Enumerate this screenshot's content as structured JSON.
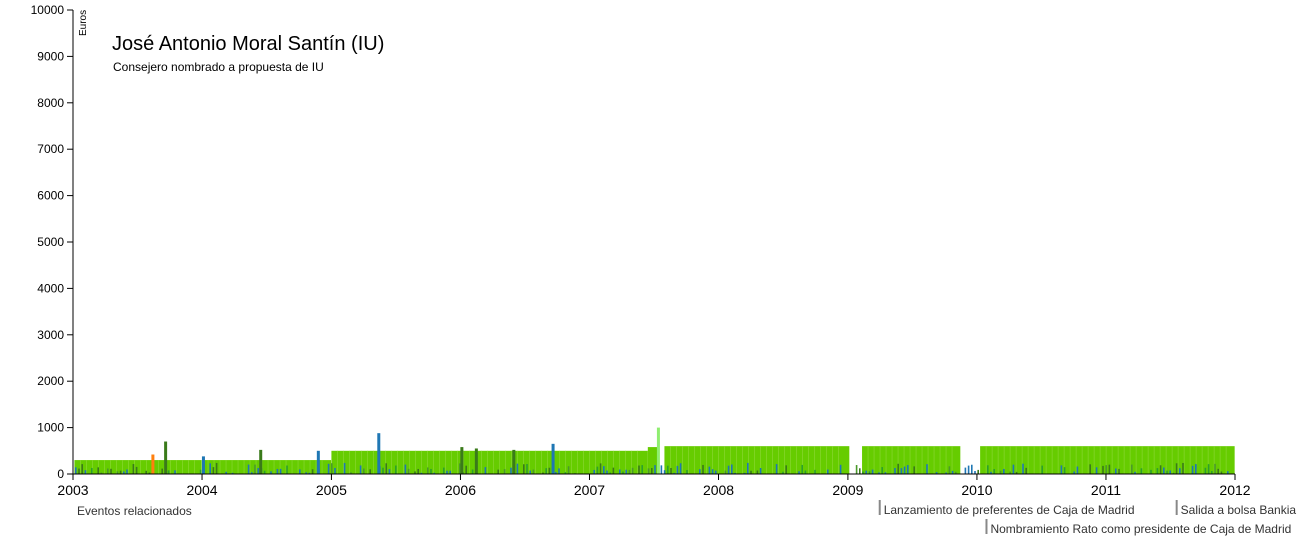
{
  "chart_data": {
    "type": "bar",
    "title": "José Antonio Moral Santín (IU)",
    "subtitle": "Consejero nombrado a propuesta de IU",
    "ylabel": "Euros",
    "ylim": [
      0,
      10000
    ],
    "y_ticks": [
      0,
      1000,
      2000,
      3000,
      4000,
      5000,
      6000,
      7000,
      8000,
      9000,
      10000
    ],
    "x_domain": [
      "2003-01-01",
      "2012-01-01"
    ],
    "x_ticks": [
      "2003",
      "2004",
      "2005",
      "2006",
      "2007",
      "2008",
      "2009",
      "2010",
      "2011",
      "2012"
    ],
    "series": [
      {
        "color": "#66cc00",
        "segments": [
          {
            "start": "2003-01-05",
            "end": "2003-12-31",
            "value": 300
          },
          {
            "start": "2004-01-01",
            "end": "2004-12-31",
            "value": 300
          },
          {
            "start": "2005-01-01",
            "end": "2007-06-15",
            "value": 500
          },
          {
            "start": "2007-06-15",
            "end": "2007-07-15",
            "value": 580
          },
          {
            "start": "2007-08-01",
            "end": "2009-01-05",
            "value": 600
          },
          {
            "start": "2009-02-10",
            "end": "2009-11-15",
            "value": 600
          },
          {
            "start": "2010-01-10",
            "end": "2011-12-31",
            "value": 600
          }
        ]
      }
    ],
    "spikes": [
      {
        "date": "2003-09-20",
        "value": 700,
        "color": "#3a7a1a"
      },
      {
        "date": "2004-01-05",
        "value": 380,
        "color": "#1f77b4"
      },
      {
        "date": "2004-06-15",
        "value": 520,
        "color": "#3a7a1a"
      },
      {
        "date": "2004-11-25",
        "value": 500,
        "color": "#1f77b4"
      },
      {
        "date": "2005-05-15",
        "value": 880,
        "color": "#1f77b4"
      },
      {
        "date": "2006-01-05",
        "value": 580,
        "color": "#3a7a1a"
      },
      {
        "date": "2006-02-15",
        "value": 550,
        "color": "#3a7a1a"
      },
      {
        "date": "2006-06-01",
        "value": 520,
        "color": "#3a7a1a"
      },
      {
        "date": "2006-09-20",
        "value": 650,
        "color": "#1f77b4"
      },
      {
        "date": "2007-07-15",
        "value": 1000,
        "color": "#8fee70"
      },
      {
        "date": "2003-08-15",
        "value": 420,
        "color": "#ff7f0e"
      }
    ],
    "events_label": "Eventos relacionados",
    "events": [
      {
        "date": "2009-04-01",
        "label": "Lanzamiento de preferentes de Caja de Madrid",
        "row": 0
      },
      {
        "date": "2011-07-20",
        "label": "Salida a bolsa Bankia",
        "row": 0
      },
      {
        "date": "2010-01-28",
        "label": "Nombramiento Rato como presidente de Caja de Madrid",
        "row": 1
      }
    ]
  }
}
